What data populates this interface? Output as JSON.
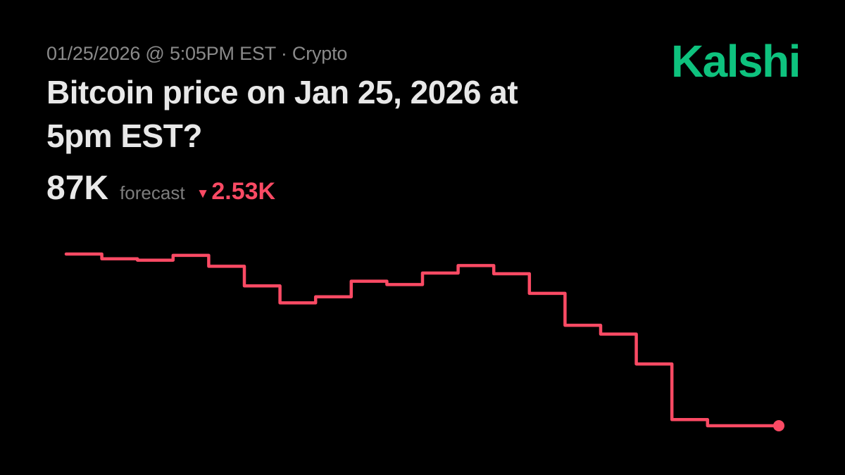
{
  "page": {
    "background": "#000000"
  },
  "header": {
    "meta": "01/25/2026 @ 5:05PM EST · Crypto",
    "title_line1": "Bitcoin price on Jan 25, 2026 at",
    "title_line2": "5pm EST?",
    "forecast_value": "87K",
    "forecast_label": "forecast",
    "change_arrow": "▼",
    "change_value": "2.53K",
    "change_direction": "down"
  },
  "brand": {
    "logo_text": "Kalshi",
    "logo_color": "#0ec27e"
  },
  "colors": {
    "background": "#000000",
    "text_primary": "#e8e8e8",
    "text_muted": "#8a8a8a",
    "text_muted_2": "#7d7d7d",
    "accent_red": "#fa4a64",
    "brand_green": "#0ec27e"
  },
  "chart_data": {
    "type": "line",
    "line_style": "step-after",
    "unit": "K",
    "values": [
      89.53,
      89.46,
      89.44,
      89.51,
      89.35,
      89.06,
      88.81,
      88.9,
      89.13,
      89.08,
      89.25,
      89.36,
      89.24,
      88.95,
      88.48,
      88.35,
      87.91,
      87.09,
      87.0,
      87.0,
      87.0
    ],
    "end_value": 87.0,
    "start_value": 89.53,
    "change": -2.53,
    "line_color": "#fa4a64",
    "line_width": 4.5,
    "end_dot_radius": 8,
    "grid": false,
    "axes_visible": false,
    "legend": false,
    "ylim": [
      86.8,
      89.8
    ]
  }
}
